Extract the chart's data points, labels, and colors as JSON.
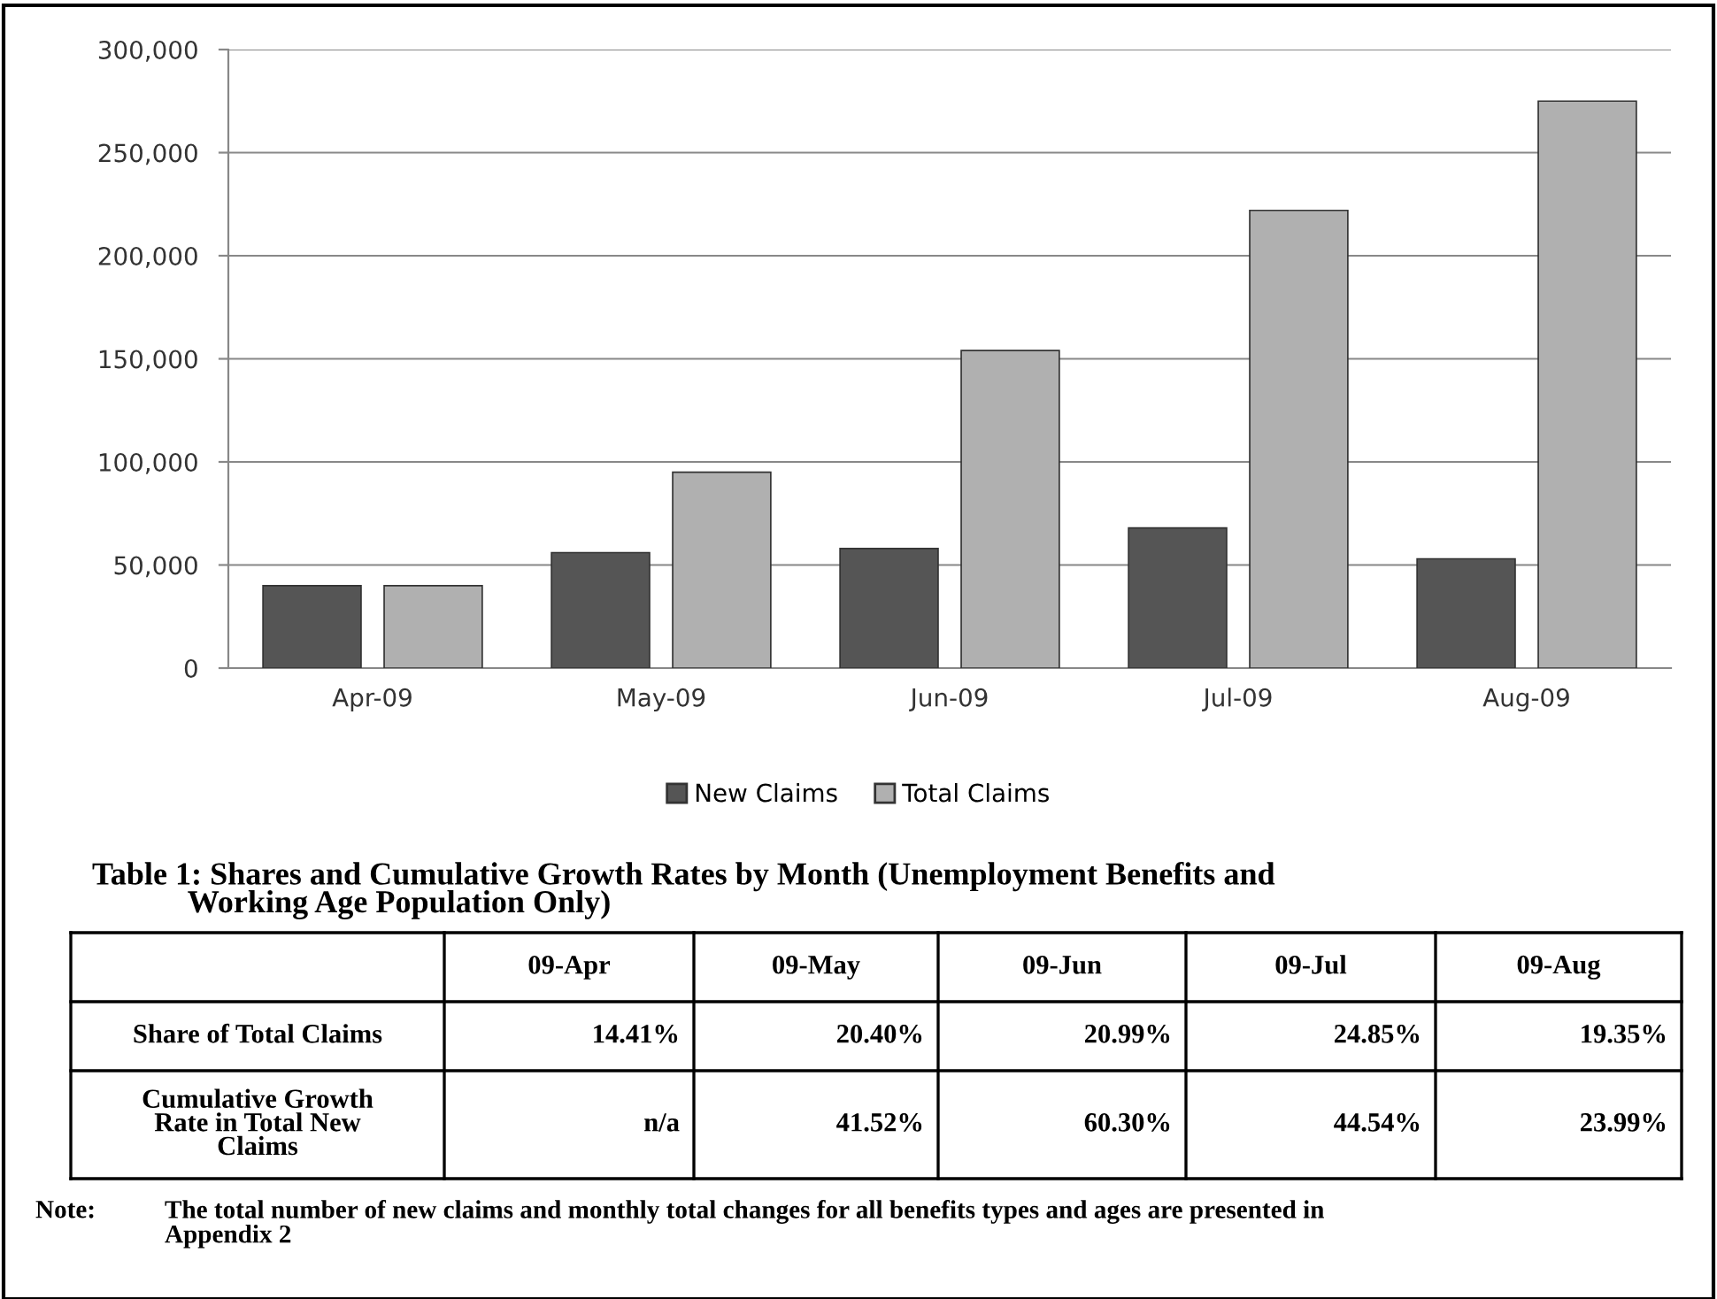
{
  "chart_data": {
    "type": "bar",
    "categories": [
      "Apr-09",
      "May-09",
      "Jun-09",
      "Jul-09",
      "Aug-09"
    ],
    "series": [
      {
        "name": "New Claims",
        "color": "#555555",
        "values": [
          40000,
          56000,
          58000,
          68000,
          53000
        ]
      },
      {
        "name": "Total Claims",
        "color": "#b0b0b0",
        "values": [
          40000,
          95000,
          154000,
          222000,
          275000
        ]
      }
    ],
    "ylim": [
      0,
      300000
    ],
    "yticks": [
      0,
      {
        "value": 50000,
        "label": "50,000"
      },
      {
        "value": 100000,
        "label": "100,000"
      },
      {
        "value": 150000,
        "label": "150,000"
      },
      {
        "value": 200000,
        "label": "200,000"
      },
      {
        "value": 250000,
        "label": "250,000"
      },
      {
        "value": 300000,
        "label": "300,000"
      }
    ],
    "grid": "y",
    "legend": "bottom",
    "annotations": [
      "Table 1: Shares and Cumulative Growth Rates by Month (Unemployment Benefits and\n            Working Age Population Only)",
      "09-Apr",
      "09-May",
      "09-Jun",
      "09-Jul",
      "09-Aug",
      "Share of Total Claims",
      "14.41%",
      "20.40%",
      "20.99%",
      "24.85%",
      "19.35%",
      "Cumulative Growth\nRate in Total New\nClaims",
      "n/a",
      "41.52%",
      "60.30%",
      "44.54%",
      "23.99%",
      "Note:",
      "The total number of new claims and monthly total changes for all benefits types and ages are presented in\nAppendix 2"
    ]
  }
}
